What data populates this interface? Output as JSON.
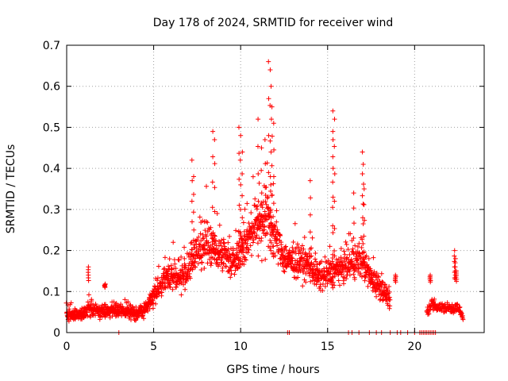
{
  "chart_data": {
    "type": "scatter",
    "title": "Day 178 of 2024, SRMTID for receiver wind",
    "xlabel": "GPS time / hours",
    "ylabel": "SRMTID / TECUs",
    "xlim": [
      0,
      24
    ],
    "ylim": [
      0,
      0.7
    ],
    "xticks": [
      0,
      5,
      10,
      15,
      20
    ],
    "yticks": [
      0,
      0.1,
      0.2,
      0.3,
      0.4,
      0.5,
      0.6,
      0.7
    ],
    "grid": true,
    "marker": "plus",
    "colors": {
      "series": "#ff0000",
      "axes": "#000000",
      "grid": "#a0a0a0"
    },
    "series": [
      {
        "name": "SRMTID",
        "profile": [
          [
            0.0,
            0.045
          ],
          [
            0.5,
            0.04
          ],
          [
            1.0,
            0.045
          ],
          [
            1.3,
            0.06
          ],
          [
            1.5,
            0.055
          ],
          [
            2.0,
            0.05
          ],
          [
            2.5,
            0.055
          ],
          [
            3.0,
            0.05
          ],
          [
            3.5,
            0.05
          ],
          [
            4.0,
            0.045
          ],
          [
            4.5,
            0.055
          ],
          [
            5.0,
            0.09
          ],
          [
            5.5,
            0.12
          ],
          [
            6.0,
            0.14
          ],
          [
            6.5,
            0.13
          ],
          [
            7.0,
            0.15
          ],
          [
            7.5,
            0.2
          ],
          [
            8.0,
            0.21
          ],
          [
            8.5,
            0.2
          ],
          [
            9.0,
            0.19
          ],
          [
            9.5,
            0.17
          ],
          [
            10.0,
            0.2
          ],
          [
            10.5,
            0.23
          ],
          [
            11.0,
            0.27
          ],
          [
            11.5,
            0.29
          ],
          [
            12.0,
            0.23
          ],
          [
            12.5,
            0.18
          ],
          [
            13.0,
            0.17
          ],
          [
            13.5,
            0.17
          ],
          [
            14.0,
            0.16
          ],
          [
            14.5,
            0.13
          ],
          [
            15.0,
            0.14
          ],
          [
            15.5,
            0.15
          ],
          [
            16.0,
            0.16
          ],
          [
            16.5,
            0.17
          ],
          [
            17.0,
            0.17
          ],
          [
            17.5,
            0.13
          ],
          [
            18.0,
            0.11
          ],
          [
            18.4,
            0.09
          ],
          [
            18.6,
            0.08
          ]
        ],
        "peaks": [
          [
            1.25,
            0.16
          ],
          [
            2.2,
            0.11
          ],
          [
            7.2,
            0.42
          ],
          [
            7.3,
            0.38
          ],
          [
            8.4,
            0.49
          ],
          [
            8.5,
            0.47
          ],
          [
            9.9,
            0.5
          ],
          [
            10.0,
            0.48
          ],
          [
            10.1,
            0.44
          ],
          [
            11.0,
            0.52
          ],
          [
            11.6,
            0.66
          ],
          [
            11.7,
            0.64
          ],
          [
            11.75,
            0.6
          ],
          [
            11.8,
            0.55
          ],
          [
            11.9,
            0.51
          ],
          [
            11.4,
            0.47
          ],
          [
            11.2,
            0.45
          ],
          [
            14.0,
            0.37
          ],
          [
            15.3,
            0.54
          ],
          [
            15.4,
            0.52
          ],
          [
            15.3,
            0.49
          ],
          [
            16.5,
            0.34
          ],
          [
            17.0,
            0.44
          ],
          [
            17.05,
            0.41
          ],
          [
            17.1,
            0.35
          ],
          [
            18.9,
            0.14
          ],
          [
            20.9,
            0.14
          ],
          [
            22.3,
            0.2
          ],
          [
            22.35,
            0.18
          ],
          [
            22.4,
            0.15
          ]
        ],
        "late_segment": [
          [
            20.7,
            0.05
          ],
          [
            21.0,
            0.07
          ],
          [
            21.5,
            0.06
          ],
          [
            22.0,
            0.06
          ],
          [
            22.5,
            0.06
          ],
          [
            22.8,
            0.035
          ]
        ],
        "zero_points": [
          3.0,
          12.7,
          12.8,
          16.2,
          16.4,
          16.8,
          17.4,
          17.8,
          18.1,
          18.6,
          19.0,
          19.2,
          19.6,
          20.0,
          20.3,
          20.4,
          20.5,
          20.6,
          20.7,
          20.8,
          20.9,
          21.0,
          21.1,
          21.2
        ]
      }
    ]
  }
}
